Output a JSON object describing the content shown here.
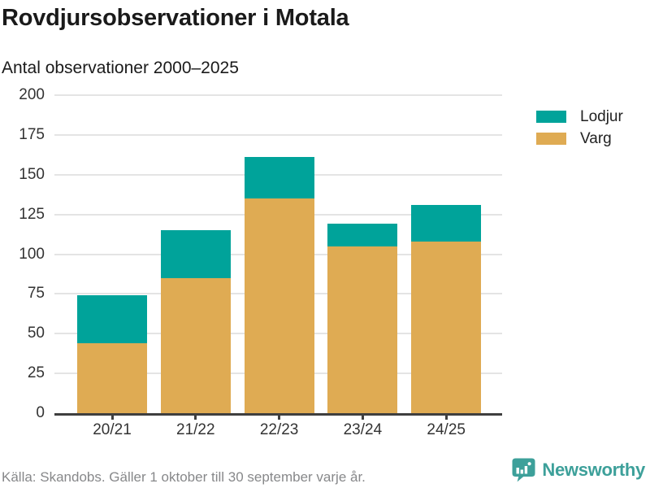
{
  "header": {
    "title": "Rovdjursobservationer i Motala",
    "subtitle": "Antal observationer 2000–2025"
  },
  "legend": [
    {
      "label": "Lodjur",
      "color": "#00a39a"
    },
    {
      "label": "Varg",
      "color": "#dfab53"
    }
  ],
  "chart_data": {
    "type": "bar",
    "stacked": true,
    "title": "Rovdjursobservationer i Motala",
    "subtitle": "Antal observationer 2000–2025",
    "categories": [
      "20/21",
      "21/22",
      "22/23",
      "23/24",
      "24/25"
    ],
    "series": [
      {
        "name": "Varg",
        "color": "#dfab53",
        "values": [
          44,
          85,
          135,
          105,
          108
        ]
      },
      {
        "name": "Lodjur",
        "color": "#00a39a",
        "values": [
          30,
          30,
          26,
          14,
          23
        ]
      }
    ],
    "totals": [
      74,
      115,
      161,
      119,
      131
    ],
    "xlabel": "",
    "ylabel": "",
    "ylim": [
      0,
      200
    ],
    "yticks": [
      0,
      25,
      50,
      75,
      100,
      125,
      150,
      175,
      200
    ],
    "grid": true,
    "legend_position": "right"
  },
  "footer": {
    "source": "Källa: Skandobs. Gäller 1 oktober till 30 september varje år.",
    "brand": "Newsworthy",
    "brand_color": "#3da09a"
  }
}
